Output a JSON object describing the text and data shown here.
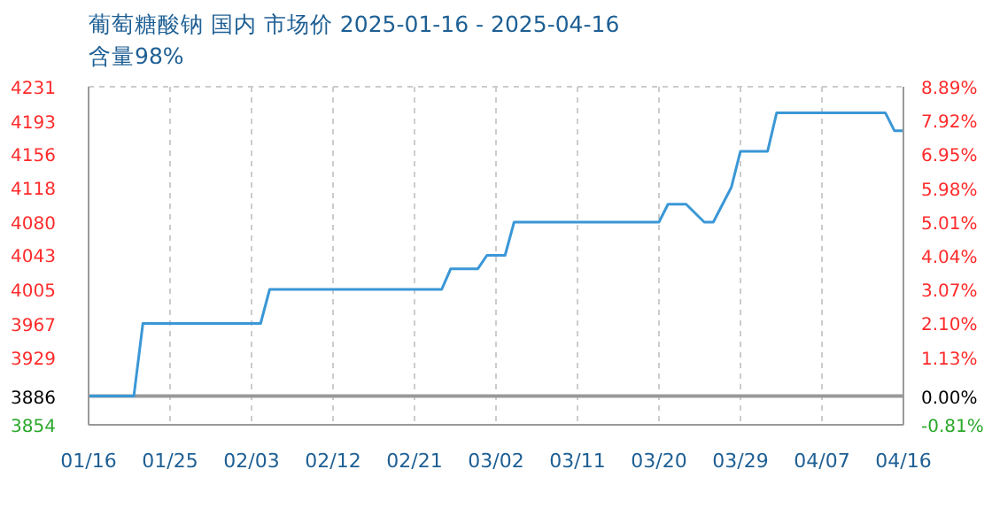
{
  "chart_data": {
    "type": "line",
    "title": "葡萄糖酸钠 国内 市场价 2025-01-16 - 2025-04-16",
    "subtitle": "含量98%",
    "x": [
      "2025-01-16",
      "2025-01-21",
      "2025-01-22",
      "2025-02-04",
      "2025-02-05",
      "2025-02-24",
      "2025-02-25",
      "2025-02-28",
      "2025-03-01",
      "2025-03-03",
      "2025-03-04",
      "2025-03-20",
      "2025-03-21",
      "2025-03-23",
      "2025-03-25",
      "2025-03-26",
      "2025-03-28",
      "2025-03-29",
      "2025-04-01",
      "2025-04-02",
      "2025-04-14",
      "2025-04-15",
      "2025-04-16"
    ],
    "series": [
      {
        "color": "#3a97d6",
        "values": [
          3886,
          3886,
          3967,
          3967,
          4005,
          4005,
          4028,
          4028,
          4043,
          4043,
          4080,
          4080,
          4100,
          4100,
          4080,
          4080,
          4119,
          4159,
          4159,
          4202,
          4202,
          4182,
          4182
        ]
      }
    ],
    "xlim": [
      "2025-01-16",
      "2025-04-16"
    ],
    "xticks": [
      {
        "value": "2025-01-16",
        "label": "01/16"
      },
      {
        "value": "2025-01-25",
        "label": "01/25"
      },
      {
        "value": "2025-02-03",
        "label": "02/03"
      },
      {
        "value": "2025-02-12",
        "label": "02/12"
      },
      {
        "value": "2025-02-21",
        "label": "02/21"
      },
      {
        "value": "2025-03-02",
        "label": "03/02"
      },
      {
        "value": "2025-03-11",
        "label": "03/11"
      },
      {
        "value": "2025-03-20",
        "label": "03/20"
      },
      {
        "value": "2025-03-29",
        "label": "03/29"
      },
      {
        "value": "2025-04-07",
        "label": "04/07"
      },
      {
        "value": "2025-04-16",
        "label": "04/16"
      }
    ],
    "ylim": [
      3854,
      4231
    ],
    "yticks": [
      3854,
      3886,
      3929,
      3967,
      4005,
      4043,
      4080,
      4118,
      4156,
      4193,
      4231
    ],
    "y2lim": [
      -0.81,
      8.89
    ],
    "y2ticks": [
      {
        "value": -0.81,
        "label": "-0.81%"
      },
      {
        "value": 0,
        "label": "0.00%"
      },
      {
        "value": 1.13,
        "label": "1.13%"
      },
      {
        "value": 2.1,
        "label": "2.10%"
      },
      {
        "value": 3.07,
        "label": "3.07%"
      },
      {
        "value": 4.04,
        "label": "4.04%"
      },
      {
        "value": 5.01,
        "label": "5.01%"
      },
      {
        "value": 5.98,
        "label": "5.98%"
      },
      {
        "value": 6.95,
        "label": "6.95%"
      },
      {
        "value": 7.92,
        "label": "7.92%"
      },
      {
        "value": 8.89,
        "label": "8.89%"
      }
    ],
    "ref_lines": [
      {
        "axis": "y",
        "value": 3886,
        "color": "#999999"
      }
    ],
    "grid": true,
    "marker": "none",
    "line_style": "solid"
  }
}
